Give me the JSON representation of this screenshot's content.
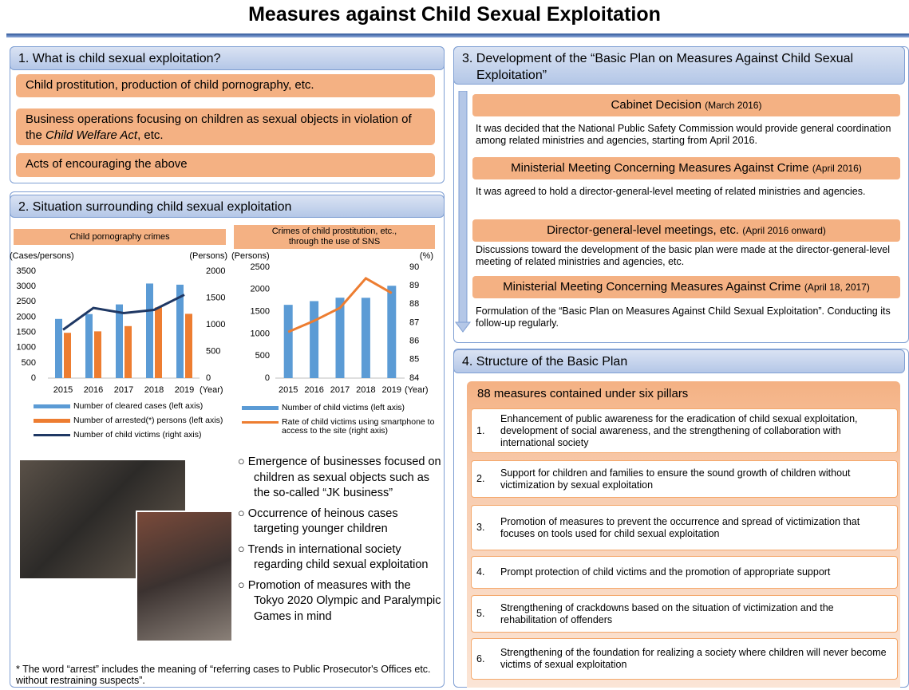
{
  "title": "Measures against Child Sexual Exploitation",
  "section1": {
    "heading": "1. What is child sexual exploitation?",
    "items": [
      "Child prostitution, production of child pornography, etc.",
      {
        "text": "Business operations focusing on children as sexual objects in violation of the ",
        "italic": "Child Welfare Act",
        "after": ", etc."
      },
      "Acts of encouraging the above"
    ]
  },
  "section2": {
    "heading": "2. Situation surrounding child sexual exploitation",
    "bullets": [
      "○ Emergence of businesses focused on children as sexual objects such as the so-called “JK business”",
      "○ Occurrence of heinous cases targeting younger children",
      "○ Trends in international society regarding child sexual exploitation",
      "○ Promotion of measures with the Tokyo 2020 Olympic and Paralympic Games in mind"
    ],
    "footnote": "* The word “arrest” includes the meaning of “referring cases to Public Prosecutor's Offices etc. without restraining suspects”."
  },
  "chart_data": [
    {
      "type": "bar_line",
      "title": "Child pornography crimes",
      "y_label": "(Cases/persons)",
      "y2_label": "(Persons)",
      "x_label": "(Year)",
      "categories": [
        "2015",
        "2016",
        "2017",
        "2018",
        "2019"
      ],
      "series": [
        {
          "name": "Number of cleared cases (left axis)",
          "type": "bar",
          "color": "#5b9bd5",
          "values": [
            1938,
            2097,
            2413,
            3097,
            3059
          ]
        },
        {
          "name": "Number of arrested(*) persons (left axis)",
          "type": "bar",
          "color": "#ed7d31",
          "values": [
            1483,
            1531,
            1703,
            2315,
            2105
          ]
        },
        {
          "name": "Number of child victims (right axis)",
          "type": "line",
          "axis": "y2",
          "color": "#1f3864",
          "values": [
            905,
            1313,
            1216,
            1276,
            1559
          ]
        }
      ],
      "ylim": [
        0,
        3500
      ],
      "yticks": [
        0,
        500,
        1000,
        1500,
        2000,
        2500,
        3000,
        3500
      ],
      "y2lim": [
        0,
        2000
      ],
      "y2ticks": [
        0,
        500,
        1000,
        1500,
        2000
      ]
    },
    {
      "type": "bar_line",
      "title": "Crimes of child prostitution, etc., through the use of SNS",
      "y_label": "(Persons)",
      "y2_label": "(%)",
      "x_label": "(Year)",
      "categories": [
        "2015",
        "2016",
        "2017",
        "2018",
        "2019"
      ],
      "series": [
        {
          "name": "Number of child victims (left axis)",
          "type": "bar",
          "color": "#5b9bd5",
          "values": [
            1652,
            1736,
            1813,
            1811,
            2082
          ]
        },
        {
          "name": "Rate of child victims using smartphone to access to the site (right axis)",
          "type": "line",
          "axis": "y2",
          "color": "#ed7d31",
          "values": [
            86.5,
            87.1,
            87.8,
            89.4,
            88.6
          ]
        }
      ],
      "ylim": [
        0,
        2500
      ],
      "yticks": [
        0,
        500,
        1000,
        1500,
        2000,
        2500
      ],
      "y2lim": [
        84,
        90
      ],
      "y2ticks": [
        84,
        85,
        86,
        87,
        88,
        89,
        90
      ]
    }
  ],
  "section3": {
    "heading": "3. Development of the “Basic Plan on Measures Against Child Sexual Exploitation”",
    "steps": [
      {
        "title": "Cabinet Decision",
        "date": "(March 2016)",
        "text": "It was decided that the National Public Safety Commission would provide general coordination among related ministries and agencies, starting from April 2016."
      },
      {
        "title": "Ministerial Meeting Concerning Measures Against Crime",
        "date": "(April 2016)",
        "text": "It was agreed to hold a director-general-level meeting of related ministries and agencies."
      },
      {
        "title": "Director-general-level meetings, etc.",
        "date": "(April 2016 onward)",
        "text": "Discussions toward the development of the basic plan were made at the director-general-level meeting of related ministries and agencies, etc."
      },
      {
        "title": "Ministerial Meeting Concerning Measures Against Crime",
        "date": "(April 18, 2017)",
        "text": "Formulation of the “Basic Plan on Measures Against Child Sexual Exploitation”. Conducting its follow-up regularly."
      }
    ]
  },
  "section4": {
    "heading": "4. Structure of the Basic Plan",
    "subtitle": "88 measures contained under six pillars",
    "items": [
      {
        "number": "1.",
        "text": "Enhancement of public awareness for the eradication of child sexual exploitation, development of social awareness, and the strengthening of collaboration with international society"
      },
      {
        "number": "2.",
        "text": "Support for children and families to ensure the sound growth of children without victimization by sexual exploitation"
      },
      {
        "number": "3.",
        "text": "Promotion of measures to prevent the occurrence and spread of victimization that focuses on tools used for child sexual exploitation"
      },
      {
        "number": "4.",
        "text": "Prompt protection of child victims and the promotion of appropriate support"
      },
      {
        "number": "5.",
        "text": "Strengthening of crackdowns based on the situation of victimization and the rehabilitation of offenders"
      },
      {
        "number": "6.",
        "text": "Strengthening of the foundation for realizing a society where children will never become victims of sexual exploitation"
      }
    ]
  }
}
